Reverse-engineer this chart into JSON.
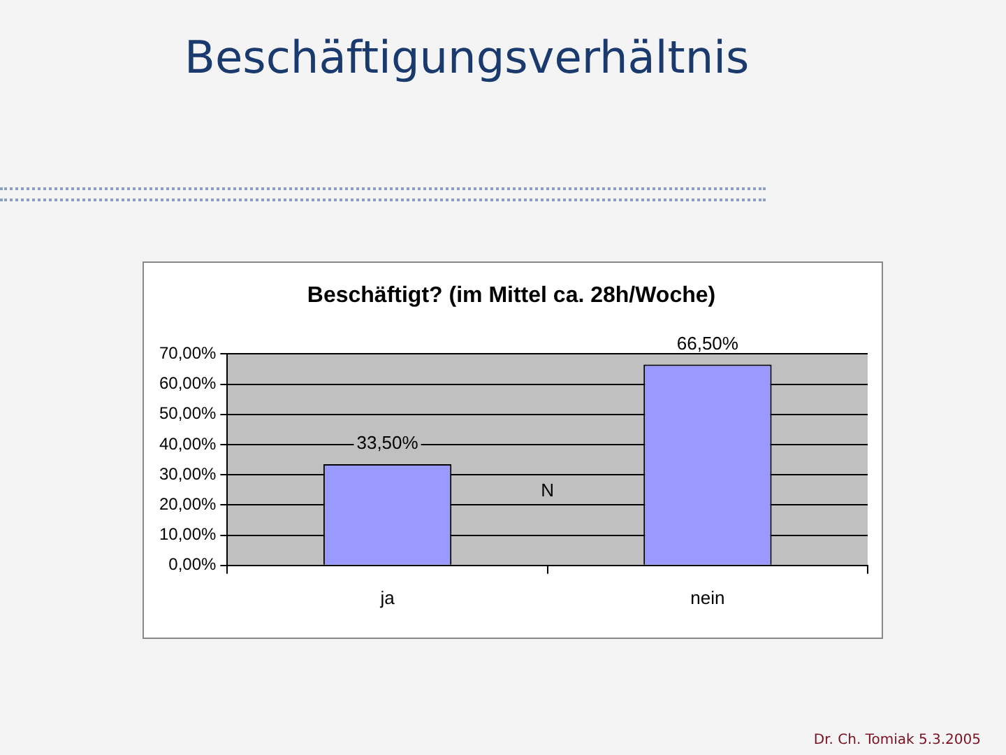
{
  "chart_data": {
    "type": "bar",
    "title": "Beschäftigungsverhältnis",
    "subtitle": "Beschäftigt? (im Mittel ca. 28h/Woche)",
    "categories": [
      "ja",
      "nein"
    ],
    "values": [
      33.5,
      66.5
    ],
    "color": "#9999ff",
    "value_labels": [
      "33,50%",
      "66,50%"
    ],
    "ylim": [
      0,
      70
    ],
    "yticks": [
      {
        "value": 0,
        "label": "0,00%"
      },
      {
        "value": 10,
        "label": "10,00%"
      },
      {
        "value": 20,
        "label": "20,00%"
      },
      {
        "value": 30,
        "label": "30,00%"
      },
      {
        "value": 40,
        "label": "40,00%"
      },
      {
        "value": 50,
        "label": "50,00%"
      },
      {
        "value": 60,
        "label": "60,00%"
      },
      {
        "value": 70,
        "label": "70,00%"
      }
    ],
    "grid": "y",
    "legend": false,
    "annotations": [
      "N",
      "Dr. Ch. Tomiak 5.3.2005"
    ]
  }
}
